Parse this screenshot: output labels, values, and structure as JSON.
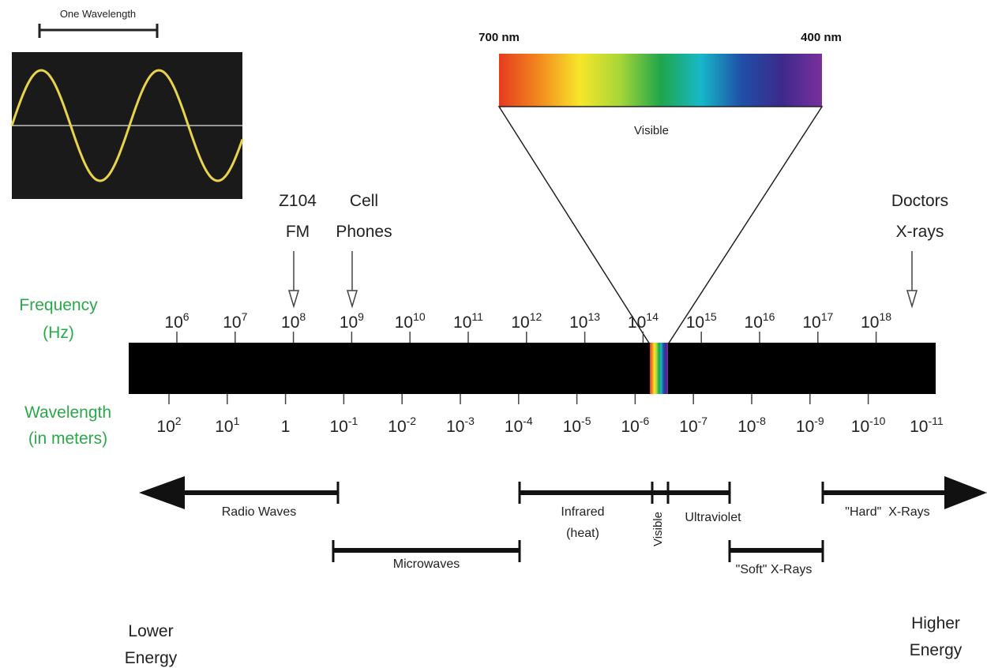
{
  "wave_box": {
    "caption": "One Wavelength",
    "colors": {
      "background": "#1a1a1a",
      "wave": "#e8d44a",
      "axis": "#bfbfbf"
    }
  },
  "visible_band": {
    "left_label": "700 nm",
    "right_label": "400 nm",
    "label": "Visible",
    "gradient_colors": [
      "#e53b1f",
      "#f28a1e",
      "#f7e62b",
      "#a6d638",
      "#1fa64a",
      "#17b8c8",
      "#1f4fa8",
      "#3c2a8a",
      "#7a2f9e"
    ]
  },
  "pointers": {
    "fm": {
      "line1": "Z104",
      "line2": "FM"
    },
    "cell": {
      "line1": "Cell",
      "line2": "Phones"
    },
    "xray": {
      "line1": "Doctors",
      "line2": "X-rays"
    }
  },
  "axis_labels": {
    "frequency": {
      "line1": "Frequency",
      "line2": "(Hz)"
    },
    "wavelength": {
      "line1": "Wavelength",
      "line2": "(in meters)"
    },
    "color": "#2aa84a"
  },
  "frequency_ticks": [
    {
      "base": "10",
      "exp": "6"
    },
    {
      "base": "10",
      "exp": "7"
    },
    {
      "base": "10",
      "exp": "8"
    },
    {
      "base": "10",
      "exp": "9"
    },
    {
      "base": "10",
      "exp": "10"
    },
    {
      "base": "10",
      "exp": "11"
    },
    {
      "base": "10",
      "exp": "12"
    },
    {
      "base": "10",
      "exp": "13"
    },
    {
      "base": "10",
      "exp": "14"
    },
    {
      "base": "10",
      "exp": "15"
    },
    {
      "base": "10",
      "exp": "16"
    },
    {
      "base": "10",
      "exp": "17"
    },
    {
      "base": "10",
      "exp": "18"
    }
  ],
  "wavelength_ticks": [
    {
      "base": "10",
      "exp": "2"
    },
    {
      "base": "10",
      "exp": "1"
    },
    {
      "base": "1",
      "exp": ""
    },
    {
      "base": "10",
      "exp": "-1"
    },
    {
      "base": "10",
      "exp": "-2"
    },
    {
      "base": "10",
      "exp": "-3"
    },
    {
      "base": "10",
      "exp": "-4"
    },
    {
      "base": "10",
      "exp": "-5"
    },
    {
      "base": "10",
      "exp": "-6"
    },
    {
      "base": "10",
      "exp": "-7"
    },
    {
      "base": "10",
      "exp": "-8"
    },
    {
      "base": "10",
      "exp": "-9"
    },
    {
      "base": "10",
      "exp": "-10"
    },
    {
      "base": "10",
      "exp": "-11"
    }
  ],
  "ranges": {
    "radio": "Radio Waves",
    "microwaves": "Microwaves",
    "infrared_line1": "Infrared",
    "infrared_line2": "(heat)",
    "visible": "Visible",
    "ultraviolet": "Ultraviolet",
    "soft_xrays": "\"Soft\" X-Rays",
    "hard_xrays": "\"Hard\"  X-Rays"
  },
  "energy": {
    "lower": {
      "line1": "Lower",
      "line2": "Energy"
    },
    "higher": {
      "line1": "Higher",
      "line2": "Energy"
    }
  }
}
